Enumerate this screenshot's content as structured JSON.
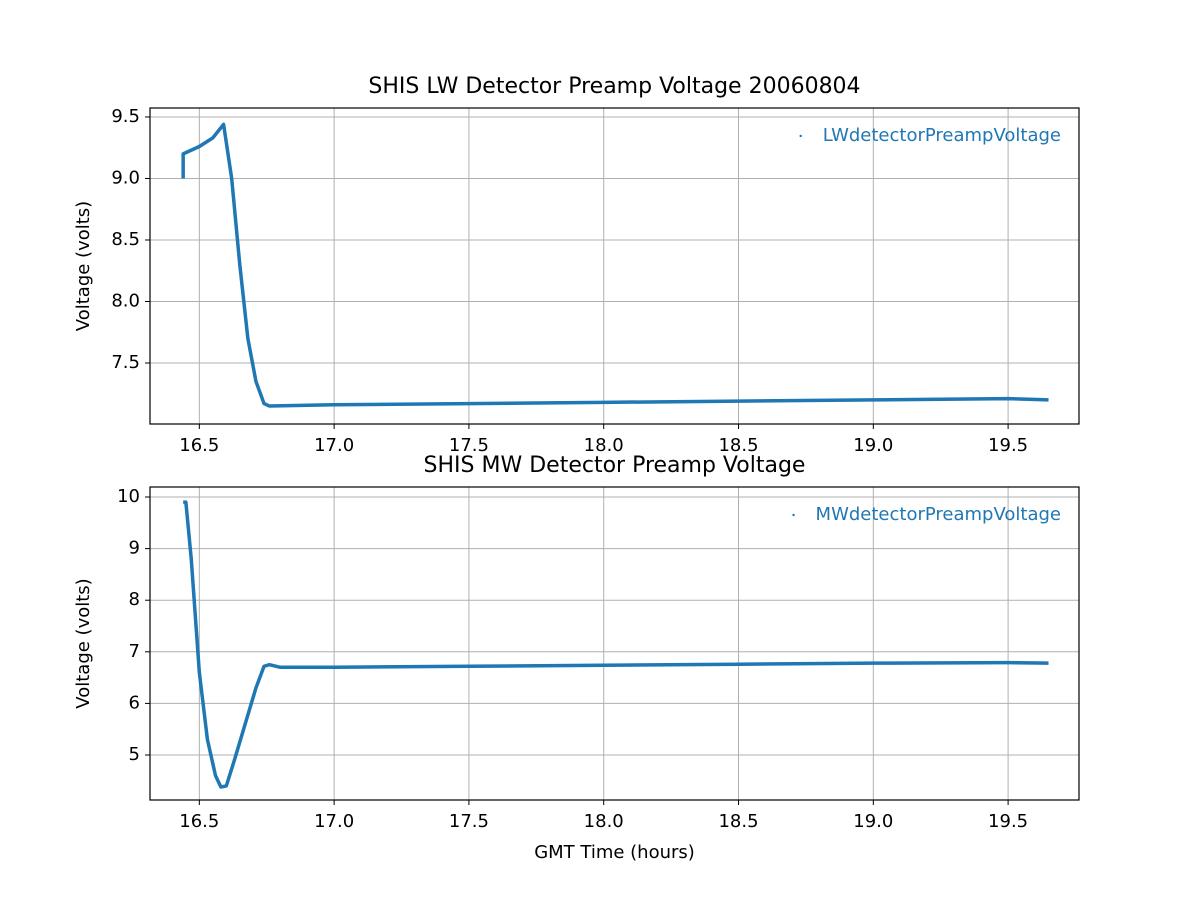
{
  "chart_data": [
    {
      "type": "line",
      "title": "SHIS LW Detector Preamp Voltage 20060804",
      "ylabel": "Voltage (volts)",
      "xlim": [
        16.317,
        19.763
      ],
      "ylim": [
        7.004,
        9.573
      ],
      "xticks": [
        16.5,
        {
          "value": 17,
          "label": "17.0"
        },
        17.5,
        {
          "value": 18,
          "label": "18.0"
        },
        18.5,
        {
          "value": 19,
          "label": "19.0"
        },
        19.5
      ],
      "yticks": [
        7.5,
        {
          "value": 8,
          "label": "8.0"
        },
        8.5,
        {
          "value": 9,
          "label": "9.0"
        },
        9.5
      ],
      "grid": true,
      "legend": "upper right",
      "x": [
        16.44,
        16.44,
        16.5,
        16.55,
        16.59,
        16.62,
        16.65,
        16.68,
        16.71,
        16.74,
        16.76,
        17.0,
        17.5,
        18.0,
        18.5,
        19.0,
        19.5,
        19.65
      ],
      "series": [
        {
          "name": "LWdetectorPreampVoltage",
          "color": "#1f77b4",
          "values": [
            9.0,
            9.2,
            9.26,
            9.33,
            9.44,
            9.0,
            8.3,
            7.7,
            7.35,
            7.17,
            7.15,
            7.16,
            7.17,
            7.18,
            7.19,
            7.2,
            7.21,
            7.2
          ]
        }
      ]
    },
    {
      "type": "line",
      "title": "SHIS MW Detector Preamp Voltage",
      "xlabel": "GMT Time (hours)",
      "ylabel": "Voltage (volts)",
      "xlim": [
        16.317,
        19.763
      ],
      "ylim": [
        4.128,
        10.194
      ],
      "xticks": [
        16.5,
        {
          "value": 17,
          "label": "17.0"
        },
        17.5,
        {
          "value": 18,
          "label": "18.0"
        },
        18.5,
        {
          "value": 19,
          "label": "19.0"
        },
        19.5
      ],
      "yticks": [
        5,
        6,
        7,
        8,
        9,
        10
      ],
      "grid": true,
      "legend": "upper right",
      "x": [
        16.44,
        16.45,
        16.47,
        16.5,
        16.53,
        16.56,
        16.58,
        16.6,
        16.63,
        16.67,
        16.71,
        16.74,
        16.76,
        16.8,
        17.0,
        17.5,
        18.0,
        18.5,
        19.0,
        19.5,
        19.65
      ],
      "series": [
        {
          "name": "MWdetectorPreampVoltage",
          "color": "#1f77b4",
          "values": [
            9.9,
            9.9,
            8.8,
            6.6,
            5.3,
            4.6,
            4.38,
            4.4,
            4.9,
            5.6,
            6.3,
            6.72,
            6.75,
            6.7,
            6.7,
            6.72,
            6.74,
            6.76,
            6.78,
            6.79,
            6.78
          ]
        }
      ]
    }
  ]
}
